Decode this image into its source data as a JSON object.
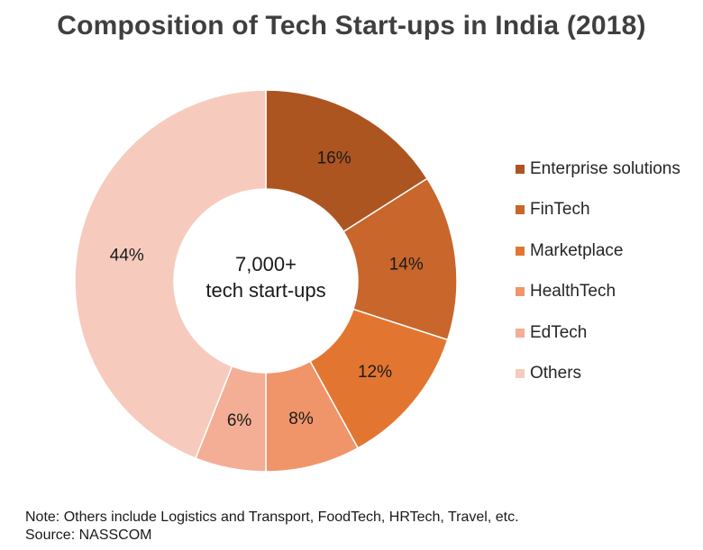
{
  "chart_data": {
    "type": "pie",
    "title": "Composition of Tech Start-ups in India (2018)",
    "center_label": [
      "7,000+",
      "tech start-ups"
    ],
    "categories": [
      "Enterprise solutions",
      "FinTech",
      "Marketplace",
      "HealthTech",
      "EdTech",
      "Others"
    ],
    "values": [
      16,
      14,
      12,
      8,
      6,
      44
    ],
    "data_labels": [
      "16%",
      "14%",
      "12%",
      "8%",
      "6%",
      "44%"
    ],
    "colors": [
      "#ad5521",
      "#c8662b",
      "#e27631",
      "#f0956a",
      "#f4ae95",
      "#f6cbbd"
    ],
    "legend_position": "right"
  },
  "notes": {
    "note": "Note: Others include Logistics and Transport, FoodTech, HRTech, Travel, etc.",
    "source": "Source: NASSCOM"
  }
}
